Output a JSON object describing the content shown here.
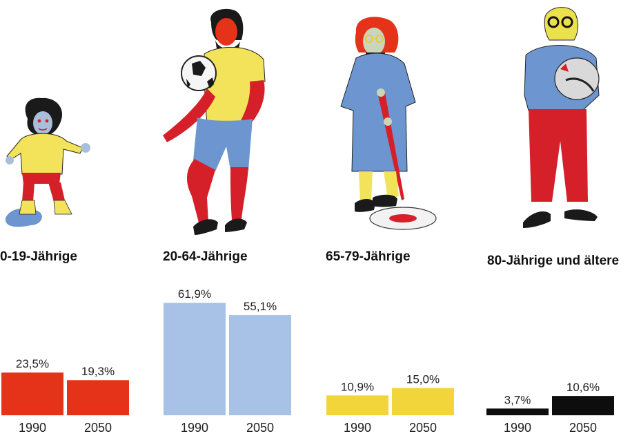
{
  "chart_data": {
    "type": "bar",
    "title": "",
    "xlabel": "",
    "ylabel": "",
    "ylim": [
      0,
      70
    ],
    "grid": false,
    "years": [
      "1990",
      "2050"
    ],
    "groups": [
      {
        "label": "0-19-Jährige",
        "color": "#e53319",
        "values": [
          23.5,
          19.3
        ],
        "value_labels": [
          "23,5%",
          "19,3%"
        ],
        "icon": "child-in-puddle-illustration"
      },
      {
        "label": "20-64-Jährige",
        "color": "#a7c2e6",
        "values": [
          61.9,
          55.1
        ],
        "value_labels": [
          "61,9%",
          "55,1%"
        ],
        "icon": "footballer-illustration"
      },
      {
        "label": "65-79-Jährige",
        "color": "#f2d43b",
        "values": [
          10.9,
          15.0
        ],
        "value_labels": [
          "10,9%",
          "15,0%"
        ],
        "icon": "woman-sweeping-illustration"
      },
      {
        "label": "80-Jährige und ältere",
        "color": "#0d0d0d",
        "values": [
          3.7,
          10.6
        ],
        "value_labels": [
          "3,7%",
          "10,6%"
        ],
        "icon": "old-man-with-hen-illustration"
      }
    ]
  }
}
